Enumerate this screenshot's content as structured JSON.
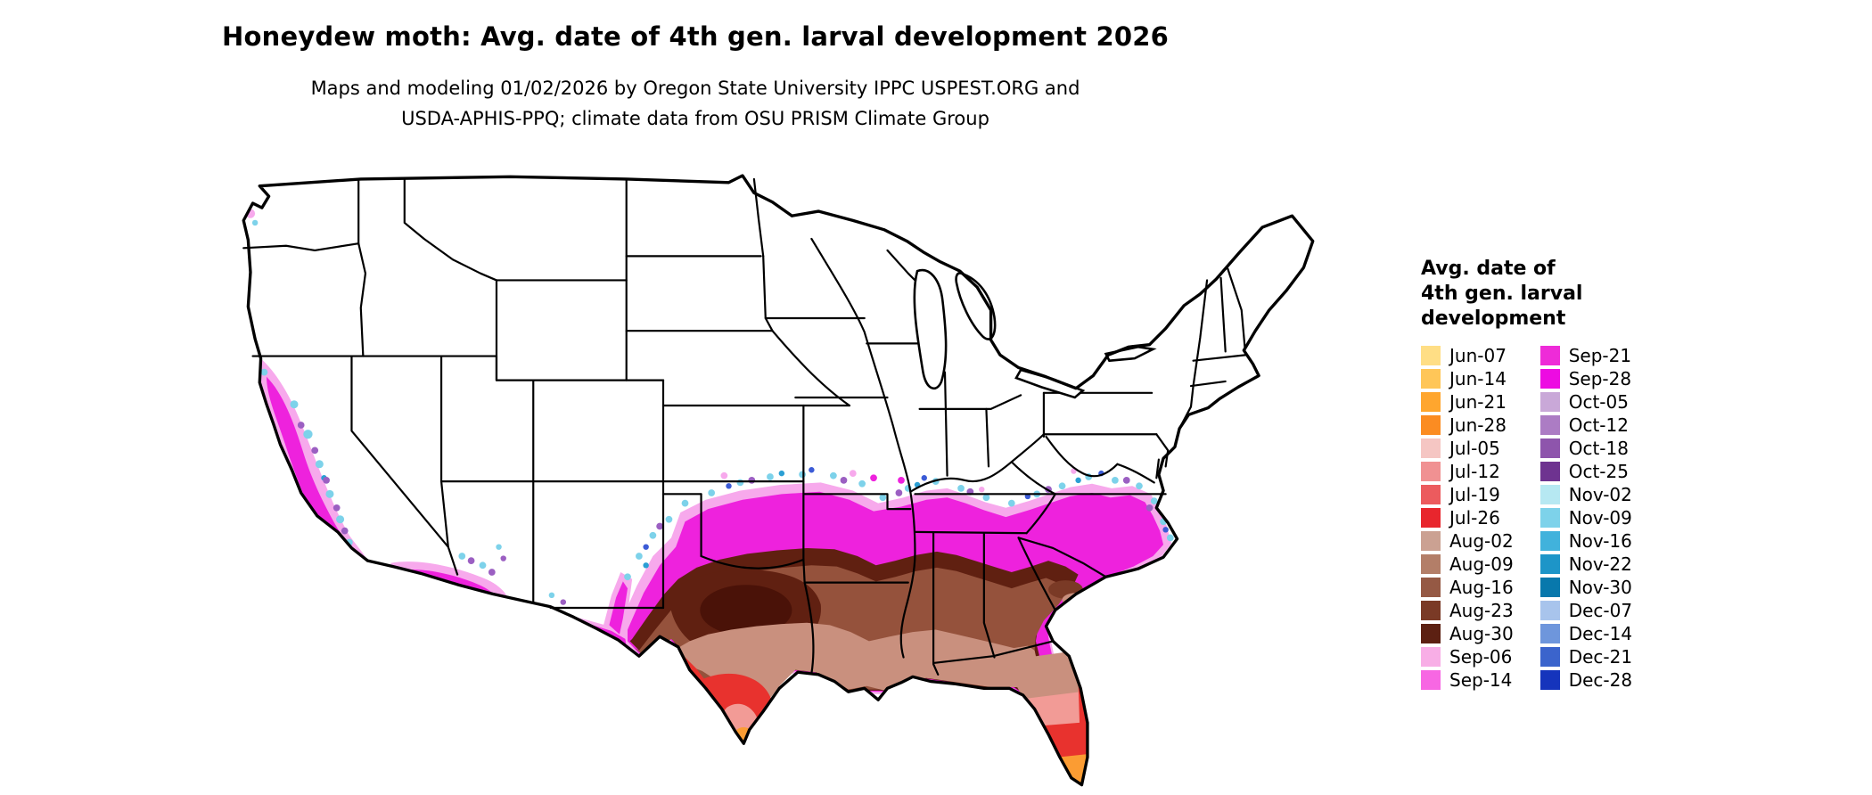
{
  "header": {
    "title": "Honeydew moth: Avg. date of 4th gen. larval development 2026",
    "subtitle_line1": "Maps and modeling 01/02/2026 by Oregon State University IPPC USPEST.ORG and",
    "subtitle_line2": "USDA-APHIS-PPQ; climate data from OSU PRISM Climate Group"
  },
  "legend": {
    "title_lines": [
      "Avg. date of",
      "4th gen. larval",
      "development"
    ],
    "columns": [
      {
        "entries": [
          {
            "label": "Jun-07",
            "color": "#FFDE85"
          },
          {
            "label": "Jun-14",
            "color": "#FFC658"
          },
          {
            "label": "Jun-21",
            "color": "#FFA62E"
          },
          {
            "label": "Jun-28",
            "color": "#FB8C22"
          },
          {
            "label": "Jul-05",
            "color": "#F5C6C3"
          },
          {
            "label": "Jul-12",
            "color": "#F09192"
          },
          {
            "label": "Jul-19",
            "color": "#EC5B5E"
          },
          {
            "label": "Jul-26",
            "color": "#E8262D"
          },
          {
            "label": "Aug-02",
            "color": "#CBA192"
          },
          {
            "label": "Aug-09",
            "color": "#B37E68"
          },
          {
            "label": "Aug-16",
            "color": "#955944"
          },
          {
            "label": "Aug-23",
            "color": "#7A3A26"
          },
          {
            "label": "Aug-30",
            "color": "#5C2012"
          },
          {
            "label": "Sep-06",
            "color": "#F8AEE6"
          },
          {
            "label": "Sep-14",
            "color": "#F767E3"
          }
        ]
      },
      {
        "entries": [
          {
            "label": "Sep-21",
            "color": "#EE2BD8"
          },
          {
            "label": "Sep-28",
            "color": "#ED0BE2"
          },
          {
            "label": "Oct-05",
            "color": "#C9A8D8"
          },
          {
            "label": "Oct-12",
            "color": "#AC7CC4"
          },
          {
            "label": "Oct-18",
            "color": "#8E55AC"
          },
          {
            "label": "Oct-25",
            "color": "#6E3390"
          },
          {
            "label": "Nov-02",
            "color": "#B6E8F2"
          },
          {
            "label": "Nov-09",
            "color": "#7DD2EA"
          },
          {
            "label": "Nov-16",
            "color": "#41B2DC"
          },
          {
            "label": "Nov-22",
            "color": "#1D95C8"
          },
          {
            "label": "Nov-30",
            "color": "#0878AC"
          },
          {
            "label": "Dec-07",
            "color": "#A8C4EC"
          },
          {
            "label": "Dec-14",
            "color": "#6E96DC"
          },
          {
            "label": "Dec-21",
            "color": "#3B64CC"
          },
          {
            "label": "Dec-28",
            "color": "#1534BC"
          }
        ]
      }
    ]
  },
  "map": {
    "region": "Continental United States",
    "no_data_color": "#FFFFFF"
  }
}
